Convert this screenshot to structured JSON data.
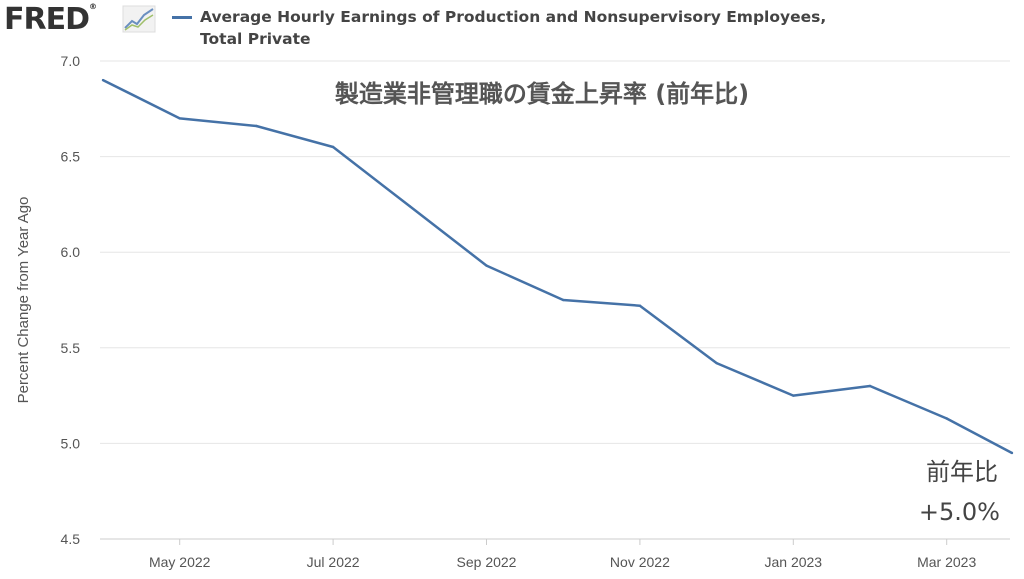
{
  "header": {
    "logo_text": "FRED",
    "logo_registered": "®",
    "legend_series_line1": "Average Hourly Earnings of Production and Nonsupervisory Employees,",
    "legend_series_line2": "Total Private"
  },
  "icons": {
    "logo_mark": "trend-chart-icon",
    "legend_swatch": "line-swatch-icon"
  },
  "colors": {
    "series": "#4572a7",
    "grid": "#e6e6e6",
    "axis_text": "#555555"
  },
  "chart_data": {
    "type": "line",
    "title": "製造業非管理職の賃金上昇率 (前年比)",
    "ylabel": "Percent Change from Year Ago",
    "xlabel": "",
    "ylim": [
      4.5,
      7.0
    ],
    "yticks": [
      "4.5",
      "5.0",
      "5.5",
      "6.0",
      "6.5",
      "7.0"
    ],
    "xticks": [
      "May 2022",
      "Jul 2022",
      "Sep 2022",
      "Nov 2022",
      "Jan 2023",
      "Mar 2023"
    ],
    "grid": true,
    "series": [
      {
        "name": "Average Hourly Earnings of Production and Nonsupervisory Employees, Total Private",
        "x": [
          "2022-04",
          "2022-05",
          "2022-06",
          "2022-07",
          "2022-08",
          "2022-09",
          "2022-10",
          "2022-11",
          "2022-12",
          "2023-01",
          "2023-02",
          "2023-03",
          "2023-04"
        ],
        "values": [
          6.9,
          6.7,
          6.66,
          6.55,
          6.24,
          5.93,
          5.75,
          5.72,
          5.42,
          5.25,
          5.3,
          5.13,
          4.95
        ]
      }
    ],
    "annotations": {
      "corner_label": "前年比",
      "corner_value": "+5.0%"
    }
  }
}
